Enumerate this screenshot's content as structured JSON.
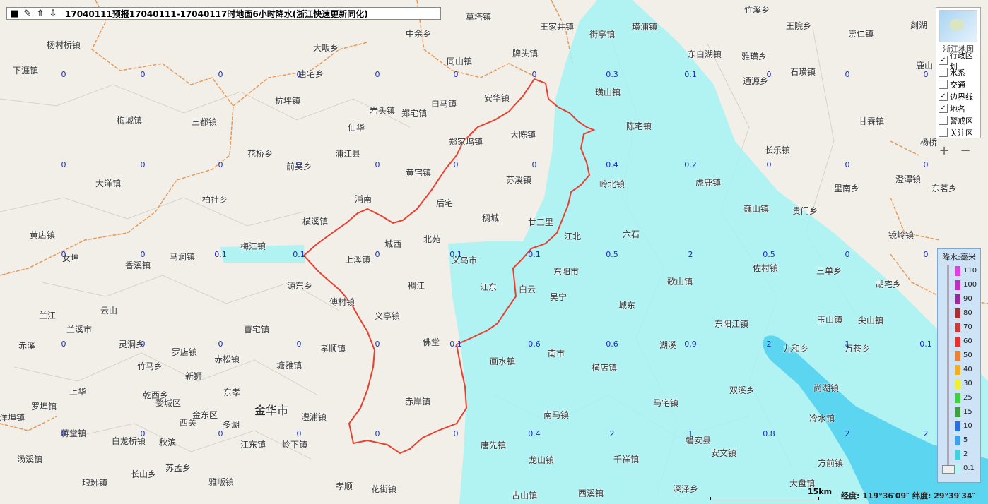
{
  "title": "17040111预报17040111-17040117时地面6小时降水(浙江快速更新同化)",
  "toolbar": {
    "icons": [
      "square-icon",
      "pin-icon",
      "arrow-up-icon",
      "arrow-down-icon"
    ]
  },
  "layers": {
    "name": "浙江地图",
    "items": [
      {
        "label": "行政区划",
        "checked": true
      },
      {
        "label": "水系",
        "checked": false
      },
      {
        "label": "交通",
        "checked": false
      },
      {
        "label": "边界线",
        "checked": true
      },
      {
        "label": "地名",
        "checked": true
      },
      {
        "label": "警戒区",
        "checked": false
      },
      {
        "label": "关注区",
        "checked": false
      }
    ]
  },
  "zoom": {
    "in": "+",
    "out": "−"
  },
  "legend": {
    "title": "降水:毫米",
    "items": [
      {
        "label": "110",
        "color": "#e040e0"
      },
      {
        "label": "100",
        "color": "#c030c0"
      },
      {
        "label": "90",
        "color": "#9b2a9b"
      },
      {
        "label": "80",
        "color": "#a83030"
      },
      {
        "label": "70",
        "color": "#c83a3a"
      },
      {
        "label": "60",
        "color": "#e83030"
      },
      {
        "label": "50",
        "color": "#f08030"
      },
      {
        "label": "40",
        "color": "#f0b020"
      },
      {
        "label": "30",
        "color": "#f0f030"
      },
      {
        "label": "25",
        "color": "#40d040"
      },
      {
        "label": "15",
        "color": "#40a040"
      },
      {
        "label": "10",
        "color": "#2a70e0"
      },
      {
        "label": "5",
        "color": "#40a0f0"
      },
      {
        "label": "2",
        "color": "#40d0e0"
      },
      {
        "label": "0.1",
        "color": "#b8f4f4"
      }
    ]
  },
  "scalebar": "15km",
  "coords": "经度: 119°36′09″ 纬度: 29°39′34″",
  "places": [
    [
      "杨村桥镇",
      84,
      63
    ],
    [
      "下涯镇",
      36,
      99
    ],
    [
      "梅城镇",
      183,
      170
    ],
    [
      "三都镇",
      289,
      172
    ],
    [
      "大洋镇",
      153,
      259
    ],
    [
      "柏社乡",
      304,
      282
    ],
    [
      "黄店镇",
      60,
      332
    ],
    [
      "女埠",
      106,
      365
    ],
    [
      "香溪镇",
      195,
      375
    ],
    [
      "马涧镇",
      258,
      363
    ],
    [
      "梅江镇",
      358,
      348
    ],
    [
      "横溪镇",
      446,
      313
    ],
    [
      "浦南",
      520,
      281
    ],
    [
      "上溪镇",
      506,
      367
    ],
    [
      "城西",
      562,
      345
    ],
    [
      "北苑",
      617,
      338
    ],
    [
      "后宅",
      635,
      287
    ],
    [
      "稠城",
      700,
      308
    ],
    [
      "义乌市",
      657,
      368
    ],
    [
      "源东乡",
      424,
      404
    ],
    [
      "傅村镇",
      484,
      427
    ],
    [
      "稠江",
      595,
      404
    ],
    [
      "义亭镇",
      548,
      447
    ],
    [
      "佛堂",
      616,
      484
    ],
    [
      "孝顺镇",
      471,
      493
    ],
    [
      "赤岸镇",
      591,
      568
    ],
    [
      "曹宅镇",
      363,
      466
    ],
    [
      "罗店镇",
      261,
      498
    ],
    [
      "赤松镇",
      321,
      508
    ],
    [
      "塘雅镇",
      409,
      517
    ],
    [
      "兰江",
      73,
      446
    ],
    [
      "云山",
      160,
      439
    ],
    [
      "兰溪市",
      112,
      466
    ],
    [
      "灵洞乡",
      186,
      487
    ],
    [
      "赤溪",
      44,
      489
    ],
    [
      "竹马乡",
      212,
      518
    ],
    [
      "新狮",
      280,
      532
    ],
    [
      "东孝",
      334,
      555
    ],
    [
      "乾西乡",
      220,
      559
    ],
    [
      "婺城区",
      238,
      570
    ],
    [
      "金东区",
      290,
      587
    ],
    [
      "西关",
      272,
      598
    ],
    [
      "多湖",
      333,
      601
    ],
    [
      "澧浦镇",
      444,
      590
    ],
    [
      "上华",
      116,
      554
    ],
    [
      "罗埠镇",
      62,
      575
    ],
    [
      "洋埠镇",
      17,
      591
    ],
    [
      "蒋堂镇",
      104,
      613
    ],
    [
      "白龙桥镇",
      176,
      624
    ],
    [
      "秋滨",
      243,
      626
    ],
    [
      "江东镇",
      358,
      629
    ],
    [
      "岭下镇",
      417,
      629
    ],
    [
      "汤溪镇",
      42,
      650
    ],
    [
      "长山乡",
      203,
      671
    ],
    [
      "苏孟乡",
      252,
      662
    ],
    [
      "琅琊镇",
      134,
      683
    ],
    [
      "雅畈镇",
      313,
      682
    ],
    [
      "孝顺",
      493,
      688
    ],
    [
      "花街镇",
      543,
      692
    ],
    [
      "杭坪镇",
      407,
      142
    ],
    [
      "岩头镇",
      541,
      156
    ],
    [
      "郑宅镇",
      586,
      160
    ],
    [
      "白马镇",
      628,
      146
    ],
    [
      "仙华",
      510,
      180
    ],
    [
      "花桥乡",
      368,
      217
    ],
    [
      "浦江县",
      492,
      217
    ],
    [
      "前吴乡",
      423,
      235
    ],
    [
      "黄宅镇",
      592,
      244
    ],
    [
      "郑家坞镇",
      653,
      200
    ],
    [
      "大陈镇",
      740,
      190
    ],
    [
      "安华镇",
      703,
      138
    ],
    [
      "苏溪镇",
      734,
      254
    ],
    [
      "同山镇",
      650,
      86
    ],
    [
      "牌头镇",
      743,
      75
    ],
    [
      "大畈乡",
      461,
      67
    ],
    [
      "唐宅乡",
      440,
      104
    ],
    [
      "中余乡",
      592,
      47
    ],
    [
      "草塔镇",
      677,
      23
    ],
    [
      "王家井镇",
      782,
      37
    ],
    [
      "街亭镇",
      852,
      48
    ],
    [
      "璜山镇",
      860,
      130
    ],
    [
      "陈宅镇",
      904,
      178
    ],
    [
      "岭北镇",
      866,
      260
    ],
    [
      "廿三里",
      765,
      314
    ],
    [
      "江北",
      816,
      334
    ],
    [
      "六石",
      899,
      331
    ],
    [
      "东阳市",
      801,
      384
    ],
    [
      "白云",
      752,
      409
    ],
    [
      "江东",
      697,
      406
    ],
    [
      "吴宁",
      796,
      420
    ],
    [
      "歌山镇",
      962,
      398
    ],
    [
      "城东",
      893,
      432
    ],
    [
      "湖溪",
      951,
      488
    ],
    [
      "东阳江镇",
      1029,
      458
    ],
    [
      "南市",
      793,
      500
    ],
    [
      "横店镇",
      855,
      520
    ],
    [
      "画水镇",
      711,
      511
    ],
    [
      "马宅镇",
      942,
      570
    ],
    [
      "双溪乡",
      1050,
      552
    ],
    [
      "南马镇",
      787,
      587
    ],
    [
      "千祥镇",
      886,
      650
    ],
    [
      "磐安县",
      988,
      623
    ],
    [
      "安文镇",
      1024,
      641
    ],
    [
      "龙山镇",
      766,
      651
    ],
    [
      "唐先镇",
      698,
      630
    ],
    [
      "古山镇",
      742,
      701
    ],
    [
      "西溪镇",
      836,
      698
    ],
    [
      "深泽乡",
      970,
      692
    ],
    [
      "大盘镇",
      1135,
      684
    ],
    [
      "冷水镇",
      1163,
      592
    ],
    [
      "方前镇",
      1175,
      655
    ],
    [
      "尚湖镇",
      1169,
      549
    ],
    [
      "九和乡",
      1126,
      493
    ],
    [
      "玉山镇",
      1174,
      452
    ],
    [
      "尖山镇",
      1232,
      453
    ],
    [
      "万苍乡",
      1213,
      493
    ],
    [
      "佐村镇",
      1083,
      379
    ],
    [
      "三单乡",
      1173,
      383
    ],
    [
      "胡宅乡",
      1257,
      402
    ],
    [
      "贵门乡",
      1139,
      298
    ],
    [
      "里南乡",
      1198,
      266
    ],
    [
      "东茗乡",
      1336,
      266
    ],
    [
      "镜岭镇",
      1275,
      332
    ],
    [
      "澄潭镇",
      1285,
      253
    ],
    [
      "长乐镇",
      1100,
      212
    ],
    [
      "甘霖镇",
      1233,
      171
    ],
    [
      "虎鹿镇",
      1002,
      258
    ],
    [
      "巍山镇",
      1070,
      295
    ],
    [
      "崇仁镇",
      1218,
      47
    ],
    [
      "王院乡",
      1130,
      36
    ],
    [
      "石璜镇",
      1136,
      101
    ],
    [
      "通源乡",
      1069,
      114
    ],
    [
      "雅璜乡",
      1067,
      79
    ],
    [
      "东白湖镇",
      991,
      76
    ],
    [
      "竹溪乡",
      1071,
      13
    ],
    [
      "璜浦镇",
      912,
      37
    ],
    [
      "鹿山",
      1314,
      92
    ],
    [
      "剡湖",
      1306,
      35
    ],
    [
      "杨桥",
      1320,
      201
    ]
  ],
  "values": [
    [
      "0",
      90,
      106
    ],
    [
      "0",
      202,
      106
    ],
    [
      "0",
      312,
      106
    ],
    [
      "0",
      423,
      106
    ],
    [
      "0",
      534,
      106
    ],
    [
      "0",
      645,
      106
    ],
    [
      "0",
      756,
      106
    ],
    [
      "0.3",
      866,
      106
    ],
    [
      "0.1",
      977,
      106
    ],
    [
      "0",
      1088,
      106
    ],
    [
      "0",
      1199,
      106
    ],
    [
      "0",
      1310,
      106
    ],
    [
      "0",
      90,
      234
    ],
    [
      "0",
      202,
      234
    ],
    [
      "0",
      312,
      234
    ],
    [
      "0",
      423,
      234
    ],
    [
      "0",
      534,
      234
    ],
    [
      "0",
      645,
      234
    ],
    [
      "0",
      756,
      234
    ],
    [
      "0.4",
      866,
      234
    ],
    [
      "0.2",
      977,
      234
    ],
    [
      "0",
      1088,
      234
    ],
    [
      "0",
      1199,
      234
    ],
    [
      "0",
      1310,
      234
    ],
    [
      "0",
      90,
      361
    ],
    [
      "0",
      202,
      361
    ],
    [
      "0.1",
      312,
      361
    ],
    [
      "0.1",
      423,
      361
    ],
    [
      "0",
      534,
      361
    ],
    [
      "0.1",
      645,
      361
    ],
    [
      "0.1",
      756,
      361
    ],
    [
      "0.5",
      866,
      361
    ],
    [
      "2",
      977,
      361
    ],
    [
      "0.5",
      1088,
      361
    ],
    [
      "0",
      1199,
      361
    ],
    [
      "0",
      1310,
      361
    ],
    [
      "0",
      90,
      488
    ],
    [
      "0",
      202,
      488
    ],
    [
      "0",
      312,
      488
    ],
    [
      "0",
      423,
      488
    ],
    [
      "0",
      534,
      488
    ],
    [
      "0.1",
      645,
      488
    ],
    [
      "0.6",
      756,
      488
    ],
    [
      "0.6",
      866,
      488
    ],
    [
      "0.9",
      977,
      488
    ],
    [
      "2",
      1088,
      488
    ],
    [
      "1",
      1199,
      488
    ],
    [
      "0.1",
      1310,
      488
    ],
    [
      "0",
      90,
      615
    ],
    [
      "0",
      202,
      615
    ],
    [
      "0",
      312,
      615
    ],
    [
      "0",
      423,
      615
    ],
    [
      "0",
      534,
      615
    ],
    [
      "0",
      645,
      615
    ],
    [
      "0.4",
      756,
      615
    ],
    [
      "2",
      866,
      615
    ],
    [
      "1",
      977,
      615
    ],
    [
      "0.8",
      1088,
      615
    ],
    [
      "2",
      1199,
      615
    ],
    [
      "2",
      1310,
      615
    ]
  ],
  "big_place": [
    "金华市",
    388,
    578
  ]
}
